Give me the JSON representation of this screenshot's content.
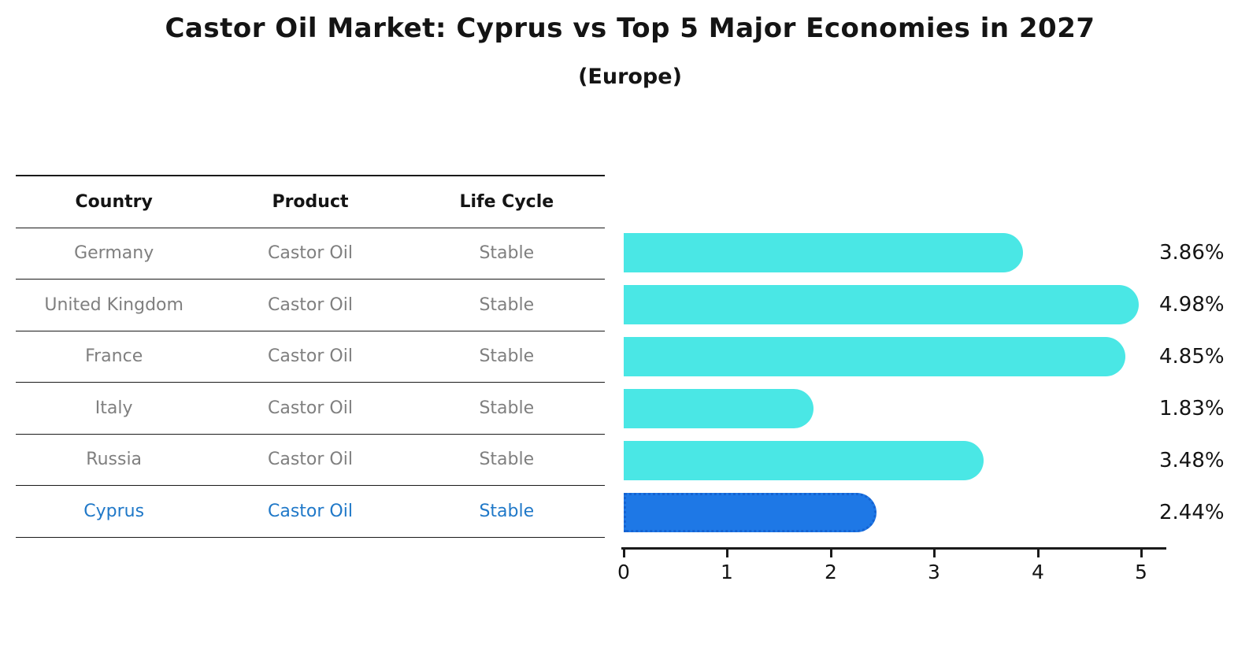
{
  "title": "Castor Oil Market: Cyprus vs Top 5 Major Economies in 2027",
  "subtitle": "(Europe)",
  "table": {
    "headers": [
      "Country",
      "Product",
      "Life Cycle"
    ],
    "rows": [
      {
        "country": "Germany",
        "product": "Castor Oil",
        "life_cycle": "Stable"
      },
      {
        "country": "United Kingdom",
        "product": "Castor Oil",
        "life_cycle": "Stable"
      },
      {
        "country": "France",
        "product": "Castor Oil",
        "life_cycle": "Stable"
      },
      {
        "country": "Italy",
        "product": "Castor Oil",
        "life_cycle": "Stable"
      },
      {
        "country": "Russia",
        "product": "Castor Oil",
        "life_cycle": "Stable"
      },
      {
        "country": "Cyprus",
        "product": "Castor Oil",
        "life_cycle": "Stable"
      }
    ],
    "highlighted_row": "Cyprus"
  },
  "chart_data": {
    "type": "bar",
    "orientation": "horizontal",
    "title": "Castor Oil Market: Cyprus vs Top 5 Major Economies in 2027",
    "subtitle": "(Europe)",
    "categories": [
      "Germany",
      "United Kingdom",
      "France",
      "Italy",
      "Russia",
      "Cyprus"
    ],
    "values": [
      3.86,
      4.98,
      4.85,
      1.83,
      3.48,
      2.44
    ],
    "value_labels": [
      "3.86%",
      "4.98%",
      "4.85%",
      "1.83%",
      "3.48%",
      "2.44%"
    ],
    "x_ticks": [
      "0",
      "1",
      "2",
      "3",
      "4",
      "5"
    ],
    "xlim": [
      0,
      5.25
    ],
    "unit": "percent",
    "grid": false,
    "legend": "none",
    "bar_color": "#4ae7e5",
    "highlight_index": 5,
    "highlight_bar_color": "#1e78e6",
    "highlight_text_color": "#1f78c8"
  }
}
